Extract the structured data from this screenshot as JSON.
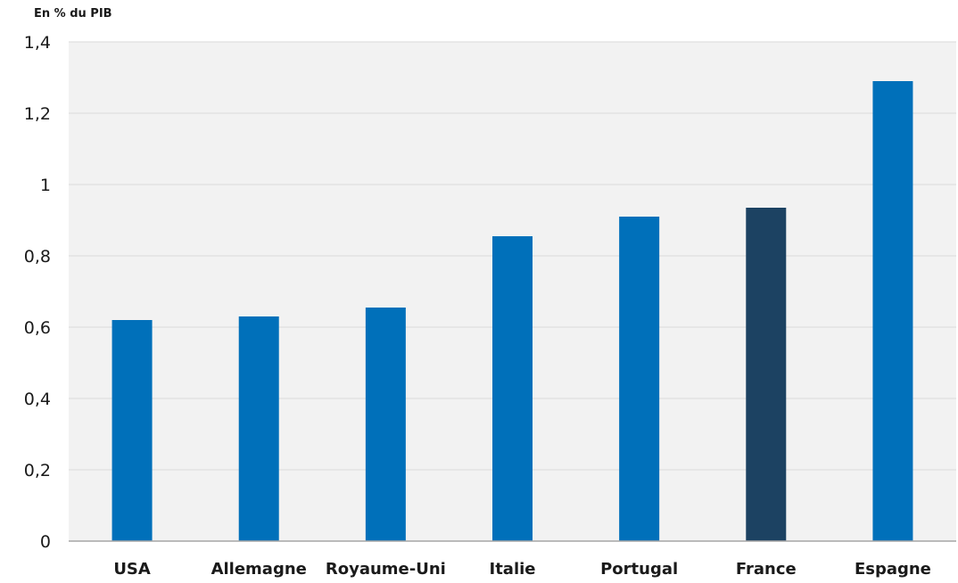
{
  "chart_data": {
    "type": "bar",
    "ylabel": "En % du PIB",
    "categories": [
      "USA",
      "Allemagne",
      "Royaume-Uni",
      "Italie",
      "Portugal",
      "France",
      "Espagne"
    ],
    "values": [
      0.62,
      0.63,
      0.655,
      0.855,
      0.91,
      0.935,
      1.29
    ],
    "highlight_category": "France",
    "ylim": [
      0,
      1.4
    ],
    "yticks": [
      0,
      0.2,
      0.4,
      0.6,
      0.8,
      1,
      1.2,
      1.4
    ],
    "ytick_labels": [
      "0",
      "0,2",
      "0,4",
      "0,6",
      "0,8",
      "1",
      "1,2",
      "1,4"
    ],
    "grid": true,
    "colors": {
      "bar": "#0070BA",
      "highlight": "#1C4262",
      "plot_background": "#F2F2F2",
      "gridline": "#DADADA",
      "axis": "#A6A6A6",
      "text": "#1A1A1A"
    }
  }
}
